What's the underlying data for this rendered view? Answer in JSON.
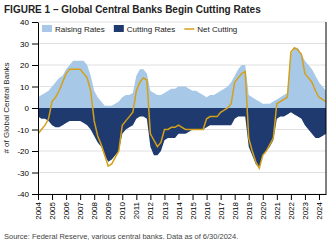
{
  "chart_data": {
    "type": "area",
    "title": "FIGURE 1 – Global Central Banks Begin Cutting Rates",
    "source": "Source: Federal Reserve, various central banks. Data as of 6/30/2024.",
    "ylabel": "# of Global Central Banks",
    "x": [
      2004.0,
      2004.25,
      2004.5,
      2004.75,
      2005.0,
      2005.25,
      2005.5,
      2005.75,
      2006.0,
      2006.25,
      2006.5,
      2006.75,
      2007.0,
      2007.25,
      2007.5,
      2007.75,
      2008.0,
      2008.25,
      2008.5,
      2008.75,
      2009.0,
      2009.25,
      2009.5,
      2009.75,
      2010.0,
      2010.25,
      2010.5,
      2010.75,
      2011.0,
      2011.25,
      2011.5,
      2011.75,
      2012.0,
      2012.25,
      2012.5,
      2012.75,
      2013.0,
      2013.25,
      2013.5,
      2013.75,
      2014.0,
      2014.25,
      2014.5,
      2014.75,
      2015.0,
      2015.25,
      2015.5,
      2015.75,
      2016.0,
      2016.25,
      2016.5,
      2016.75,
      2017.0,
      2017.25,
      2017.5,
      2017.75,
      2018.0,
      2018.25,
      2018.5,
      2018.75,
      2019.0,
      2019.25,
      2019.5,
      2019.75,
      2020.0,
      2020.25,
      2020.5,
      2020.75,
      2021.0,
      2021.25,
      2021.5,
      2021.75,
      2022.0,
      2022.25,
      2022.5,
      2022.75,
      2023.0,
      2023.25,
      2023.5,
      2023.75,
      2024.0,
      2024.25,
      2024.5
    ],
    "series": [
      {
        "name": "Raising Rates",
        "color": "#a8c8e8",
        "type": "area",
        "values": [
          5,
          6,
          7,
          8,
          10,
          12,
          14,
          15,
          18,
          20,
          22,
          22,
          22,
          22,
          20,
          15,
          8,
          5,
          3,
          1,
          1,
          1,
          2,
          3,
          5,
          6,
          6,
          7,
          15,
          18,
          18,
          16,
          8,
          7,
          6,
          6,
          7,
          8,
          9,
          9,
          10,
          10,
          10,
          9,
          8,
          8,
          7,
          6,
          5,
          6,
          6,
          7,
          8,
          9,
          10,
          12,
          15,
          18,
          20,
          20,
          6,
          5,
          4,
          3,
          2,
          2,
          2,
          3,
          4,
          5,
          6,
          7,
          25,
          28,
          28,
          25,
          22,
          20,
          18,
          15,
          12,
          10,
          8
        ]
      },
      {
        "name": "Cutting Rates",
        "color": "#1f3a6e",
        "type": "area",
        "values": [
          -4,
          -5,
          -5,
          -6,
          -8,
          -9,
          -9,
          -8,
          -7,
          -6,
          -6,
          -6,
          -6,
          -7,
          -8,
          -10,
          -13,
          -16,
          -18,
          -22,
          -25,
          -24,
          -22,
          -20,
          -12,
          -10,
          -9,
          -8,
          -5,
          -4,
          -4,
          -5,
          -18,
          -22,
          -22,
          -20,
          -15,
          -14,
          -14,
          -14,
          -12,
          -12,
          -12,
          -11,
          -10,
          -10,
          -10,
          -10,
          -9,
          -8,
          -8,
          -8,
          -8,
          -8,
          -8,
          -8,
          -5,
          -4,
          -4,
          -4,
          -18,
          -22,
          -26,
          -28,
          -22,
          -20,
          -18,
          -15,
          -5,
          -4,
          -4,
          -3,
          -2,
          -3,
          -4,
          -5,
          -8,
          -10,
          -12,
          -14,
          -14,
          -13,
          -12
        ]
      },
      {
        "name": "Net Cutting",
        "color": "#d4a017",
        "type": "line",
        "values": [
          -12,
          -10,
          -8,
          -5,
          3,
          5,
          8,
          12,
          16,
          18,
          18,
          18,
          18,
          16,
          14,
          8,
          -6,
          -13,
          -17,
          -22,
          -27,
          -26,
          -23,
          -20,
          -8,
          -6,
          -4,
          -2,
          8,
          12,
          14,
          13,
          -12,
          -15,
          -18,
          -16,
          -10,
          -10,
          -9,
          -9,
          -8,
          -9,
          -10,
          -10,
          -10,
          -10,
          -10,
          -10,
          -5,
          -4,
          -4,
          -4,
          -2,
          -1,
          0,
          2,
          12,
          14,
          16,
          17,
          -14,
          -20,
          -25,
          -28,
          -22,
          -20,
          -17,
          -14,
          2,
          3,
          4,
          5,
          26,
          28,
          27,
          25,
          16,
          14,
          12,
          8,
          5,
          4,
          3
        ]
      }
    ],
    "xlim": [
      2004.0,
      2024.5
    ],
    "xticks": [
      2004,
      2005,
      2006,
      2007,
      2008,
      2009,
      2010,
      2011,
      2012,
      2013,
      2014,
      2015,
      2016,
      2017,
      2018,
      2019,
      2020,
      2021,
      2022,
      2023,
      2024
    ],
    "ylim": [
      -40,
      40
    ],
    "yticks": [
      -40,
      -30,
      -20,
      -10,
      0,
      10,
      20,
      30,
      40
    ],
    "grid": true,
    "legend": "top-left"
  }
}
